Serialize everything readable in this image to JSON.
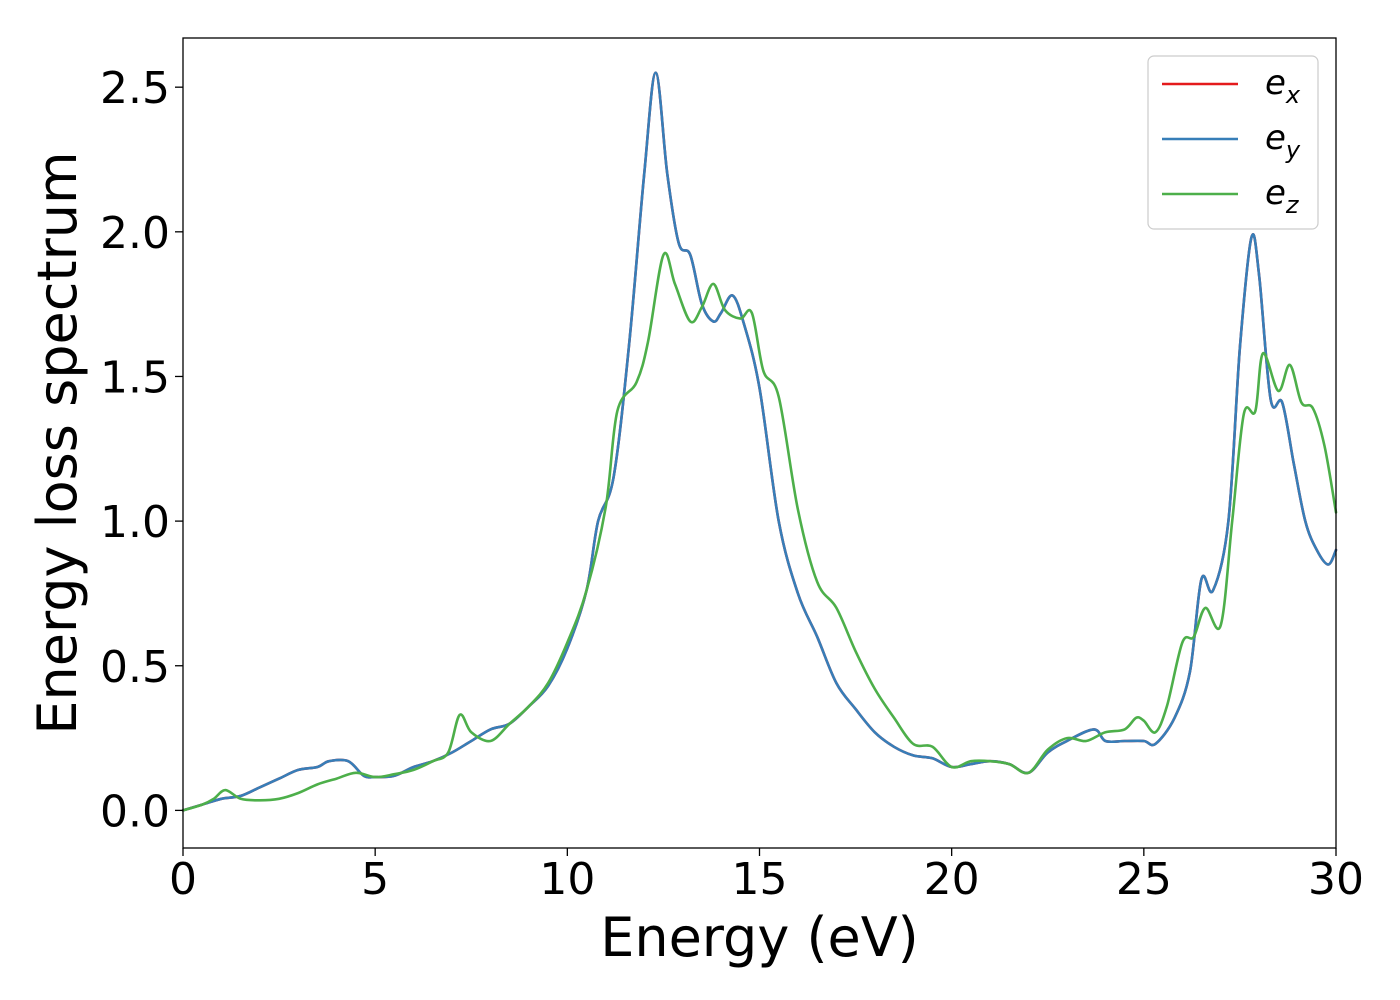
{
  "chart_data": {
    "type": "line",
    "title": "",
    "xlabel": "Energy (eV)",
    "ylabel": "Energy loss spectrum",
    "xlim": [
      0,
      30
    ],
    "ylim": [
      -0.13,
      2.67
    ],
    "xticks": [
      0,
      5,
      10,
      15,
      20,
      25,
      30
    ],
    "xtick_labels": [
      "0",
      "5",
      "10",
      "15",
      "20",
      "25",
      "30"
    ],
    "yticks": [
      0.0,
      0.5,
      1.0,
      1.5,
      2.0,
      2.5
    ],
    "ytick_labels": [
      "0.0",
      "0.5",
      "1.0",
      "1.5",
      "2.0",
      "2.5"
    ],
    "grid": false,
    "legend_position": "top-right",
    "series": [
      {
        "name": "e_x",
        "legend_base": "e",
        "legend_sub": "x",
        "color": "#e41a1c",
        "x": [
          0,
          0.5,
          1,
          1.5,
          2,
          2.5,
          3,
          3.5,
          3.8,
          4.3,
          4.7,
          5,
          5.5,
          6,
          6.5,
          7,
          7.5,
          8,
          8.5,
          9,
          9.5,
          10,
          10.5,
          10.8,
          11.2,
          11.6,
          12,
          12.3,
          12.6,
          12.9,
          13.2,
          13.5,
          13.8,
          14,
          14.3,
          14.6,
          15,
          15.5,
          16,
          16.5,
          17,
          17.5,
          18,
          18.5,
          19,
          19.5,
          20,
          20.5,
          21,
          21.5,
          22,
          22.5,
          23,
          23.7,
          24,
          24.5,
          25,
          25.3,
          25.8,
          26.2,
          26.5,
          26.8,
          27.2,
          27.5,
          27.8,
          28,
          28.3,
          28.6,
          28.9,
          29.2,
          29.5,
          29.8,
          30
        ],
        "y": [
          0,
          0.02,
          0.04,
          0.05,
          0.08,
          0.11,
          0.14,
          0.15,
          0.17,
          0.17,
          0.12,
          0.115,
          0.12,
          0.15,
          0.17,
          0.2,
          0.24,
          0.28,
          0.3,
          0.36,
          0.43,
          0.56,
          0.76,
          1.0,
          1.15,
          1.6,
          2.2,
          2.55,
          2.2,
          1.96,
          1.92,
          1.75,
          1.69,
          1.72,
          1.78,
          1.68,
          1.46,
          1.0,
          0.75,
          0.6,
          0.44,
          0.35,
          0.27,
          0.22,
          0.19,
          0.18,
          0.15,
          0.16,
          0.17,
          0.16,
          0.13,
          0.2,
          0.24,
          0.28,
          0.24,
          0.24,
          0.24,
          0.23,
          0.32,
          0.48,
          0.8,
          0.76,
          1.0,
          1.6,
          1.98,
          1.85,
          1.42,
          1.41,
          1.2,
          1.0,
          0.9,
          0.85,
          0.9
        ]
      },
      {
        "name": "e_y",
        "legend_base": "e",
        "legend_sub": "y",
        "color": "#377eb8",
        "x": [
          0,
          0.5,
          1,
          1.5,
          2,
          2.5,
          3,
          3.5,
          3.8,
          4.3,
          4.7,
          5,
          5.5,
          6,
          6.5,
          7,
          7.5,
          8,
          8.5,
          9,
          9.5,
          10,
          10.5,
          10.8,
          11.2,
          11.6,
          12,
          12.3,
          12.6,
          12.9,
          13.2,
          13.5,
          13.8,
          14,
          14.3,
          14.6,
          15,
          15.5,
          16,
          16.5,
          17,
          17.5,
          18,
          18.5,
          19,
          19.5,
          20,
          20.5,
          21,
          21.5,
          22,
          22.5,
          23,
          23.7,
          24,
          24.5,
          25,
          25.3,
          25.8,
          26.2,
          26.5,
          26.8,
          27.2,
          27.5,
          27.8,
          28,
          28.3,
          28.6,
          28.9,
          29.2,
          29.5,
          29.8,
          30
        ],
        "y": [
          0,
          0.02,
          0.04,
          0.05,
          0.08,
          0.11,
          0.14,
          0.15,
          0.17,
          0.17,
          0.12,
          0.115,
          0.12,
          0.15,
          0.17,
          0.2,
          0.24,
          0.28,
          0.3,
          0.36,
          0.43,
          0.56,
          0.76,
          1.0,
          1.15,
          1.6,
          2.2,
          2.55,
          2.2,
          1.96,
          1.92,
          1.75,
          1.69,
          1.72,
          1.78,
          1.68,
          1.46,
          1.0,
          0.75,
          0.6,
          0.44,
          0.35,
          0.27,
          0.22,
          0.19,
          0.18,
          0.15,
          0.16,
          0.17,
          0.16,
          0.13,
          0.2,
          0.24,
          0.28,
          0.24,
          0.24,
          0.24,
          0.23,
          0.32,
          0.48,
          0.8,
          0.76,
          1.0,
          1.6,
          1.98,
          1.85,
          1.42,
          1.41,
          1.2,
          1.0,
          0.9,
          0.85,
          0.9
        ]
      },
      {
        "name": "e_z",
        "legend_base": "e",
        "legend_sub": "z",
        "color": "#4daf4a",
        "x": [
          0,
          0.5,
          0.8,
          1.1,
          1.5,
          2,
          2.5,
          3,
          3.5,
          4,
          4.5,
          5,
          5.5,
          6,
          6.5,
          6.9,
          7.2,
          7.5,
          8,
          8.5,
          9,
          9.5,
          10,
          10.5,
          11,
          11.3,
          11.8,
          12.1,
          12.5,
          12.8,
          13.2,
          13.5,
          13.8,
          14.1,
          14.5,
          14.8,
          15.1,
          15.5,
          16,
          16.5,
          17,
          17.5,
          18,
          18.5,
          19,
          19.5,
          20,
          20.5,
          21,
          21.5,
          22,
          22.5,
          23,
          23.5,
          24,
          24.5,
          24.8,
          25,
          25.3,
          25.6,
          26,
          26.3,
          26.6,
          27,
          27.3,
          27.6,
          27.9,
          28.1,
          28.5,
          28.8,
          29.1,
          29.4,
          29.7,
          30
        ],
        "y": [
          0,
          0.02,
          0.04,
          0.07,
          0.04,
          0.035,
          0.04,
          0.06,
          0.09,
          0.11,
          0.13,
          0.115,
          0.125,
          0.14,
          0.17,
          0.2,
          0.33,
          0.27,
          0.24,
          0.3,
          0.36,
          0.44,
          0.58,
          0.76,
          1.05,
          1.38,
          1.48,
          1.62,
          1.92,
          1.82,
          1.69,
          1.74,
          1.82,
          1.73,
          1.7,
          1.72,
          1.52,
          1.43,
          1.04,
          0.79,
          0.7,
          0.55,
          0.42,
          0.32,
          0.23,
          0.22,
          0.15,
          0.17,
          0.17,
          0.16,
          0.13,
          0.21,
          0.25,
          0.24,
          0.27,
          0.28,
          0.32,
          0.31,
          0.27,
          0.36,
          0.58,
          0.6,
          0.7,
          0.64,
          1.0,
          1.37,
          1.38,
          1.58,
          1.45,
          1.54,
          1.41,
          1.39,
          1.26,
          1.03
        ]
      }
    ]
  }
}
